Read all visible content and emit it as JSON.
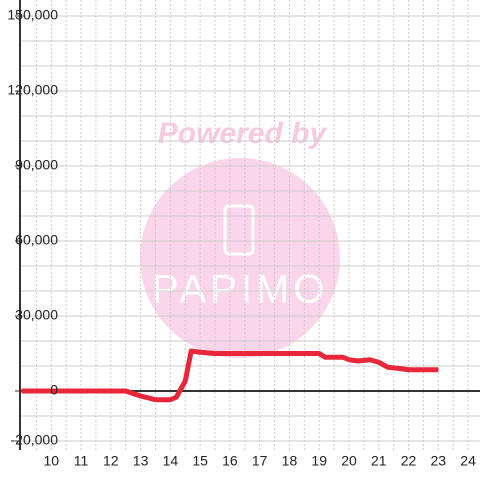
{
  "chart_data": {
    "type": "line",
    "watermark": {
      "line1": "Powered by",
      "line2": "PAPIMO"
    },
    "x": [
      9,
      10,
      11,
      12,
      12.5,
      13,
      13.5,
      14,
      14.2,
      14.5,
      14.7,
      15,
      15.5,
      16,
      17,
      18,
      19,
      19.2,
      19.8,
      20,
      20.3,
      20.7,
      21,
      21.3,
      21.7,
      22,
      22.5,
      23
    ],
    "series": [
      {
        "color": "#e8283a",
        "values": [
          0,
          0,
          0,
          0,
          0,
          -2000,
          -3500,
          -3500,
          -2500,
          4000,
          16000,
          15500,
          15000,
          15000,
          15000,
          15000,
          15000,
          13500,
          13500,
          12500,
          12000,
          12500,
          11500,
          9500,
          9000,
          8500,
          8500,
          8500
        ]
      }
    ],
    "xlim": [
      8.95,
      24.4
    ],
    "ylim": [
      -23600,
      156400
    ],
    "xticks": [
      10,
      11,
      12,
      13,
      14,
      15,
      16,
      17,
      18,
      19,
      20,
      21,
      22,
      23,
      24
    ],
    "yticks": [
      {
        "value": -20000,
        "label": "-20,000"
      },
      0,
      {
        "value": 30000,
        "label": "30,000"
      },
      {
        "value": 60000,
        "label": "60,000"
      },
      {
        "value": 90000,
        "label": "90,000"
      },
      {
        "value": 120000,
        "label": "120,000"
      },
      {
        "value": 150000,
        "label": "150,000"
      }
    ],
    "ygrid": [
      -20000,
      -10000,
      10000,
      20000,
      40000,
      50000,
      70000,
      80000,
      100000,
      110000,
      130000,
      140000
    ],
    "xgrid": [
      9.5,
      10.5,
      11.5,
      12.5,
      13.5,
      14.5,
      15.5,
      16.5,
      17.5,
      18.5,
      19.5,
      20.5,
      21.5,
      22.5,
      23.5
    ],
    "grid": true
  }
}
